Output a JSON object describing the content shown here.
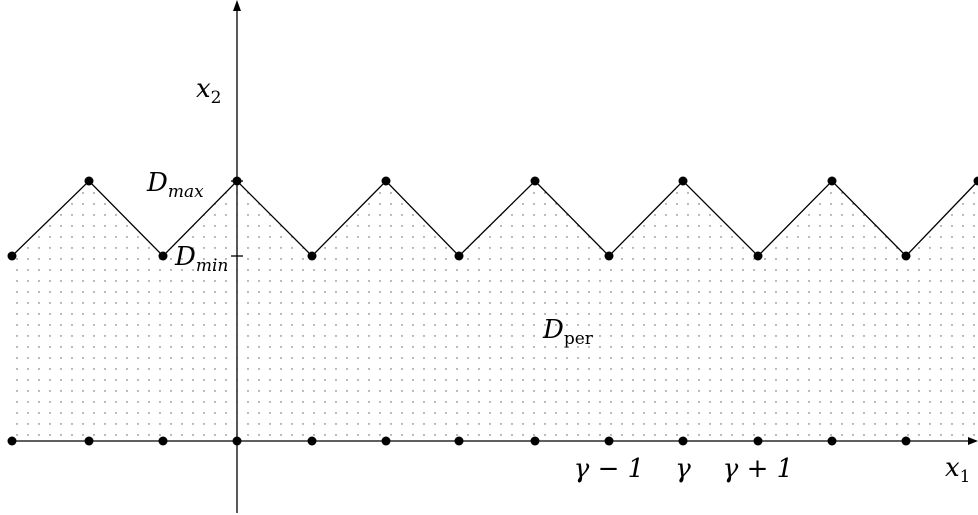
{
  "labels": {
    "x2_main": "x",
    "x2_sub": "2",
    "x1_main": "x",
    "x1_sub": "1",
    "dmax_main": "D",
    "dmax_sub": "max",
    "dmin_main": "D",
    "dmin_sub": "min",
    "dper_main": "D",
    "dper_sub": "per",
    "gamma_minus": "γ − 1",
    "gamma": "γ",
    "gamma_plus": "γ + 1"
  },
  "colors": {
    "ink": "#000000",
    "dots": "#555555",
    "background": "#ffffff"
  }
}
